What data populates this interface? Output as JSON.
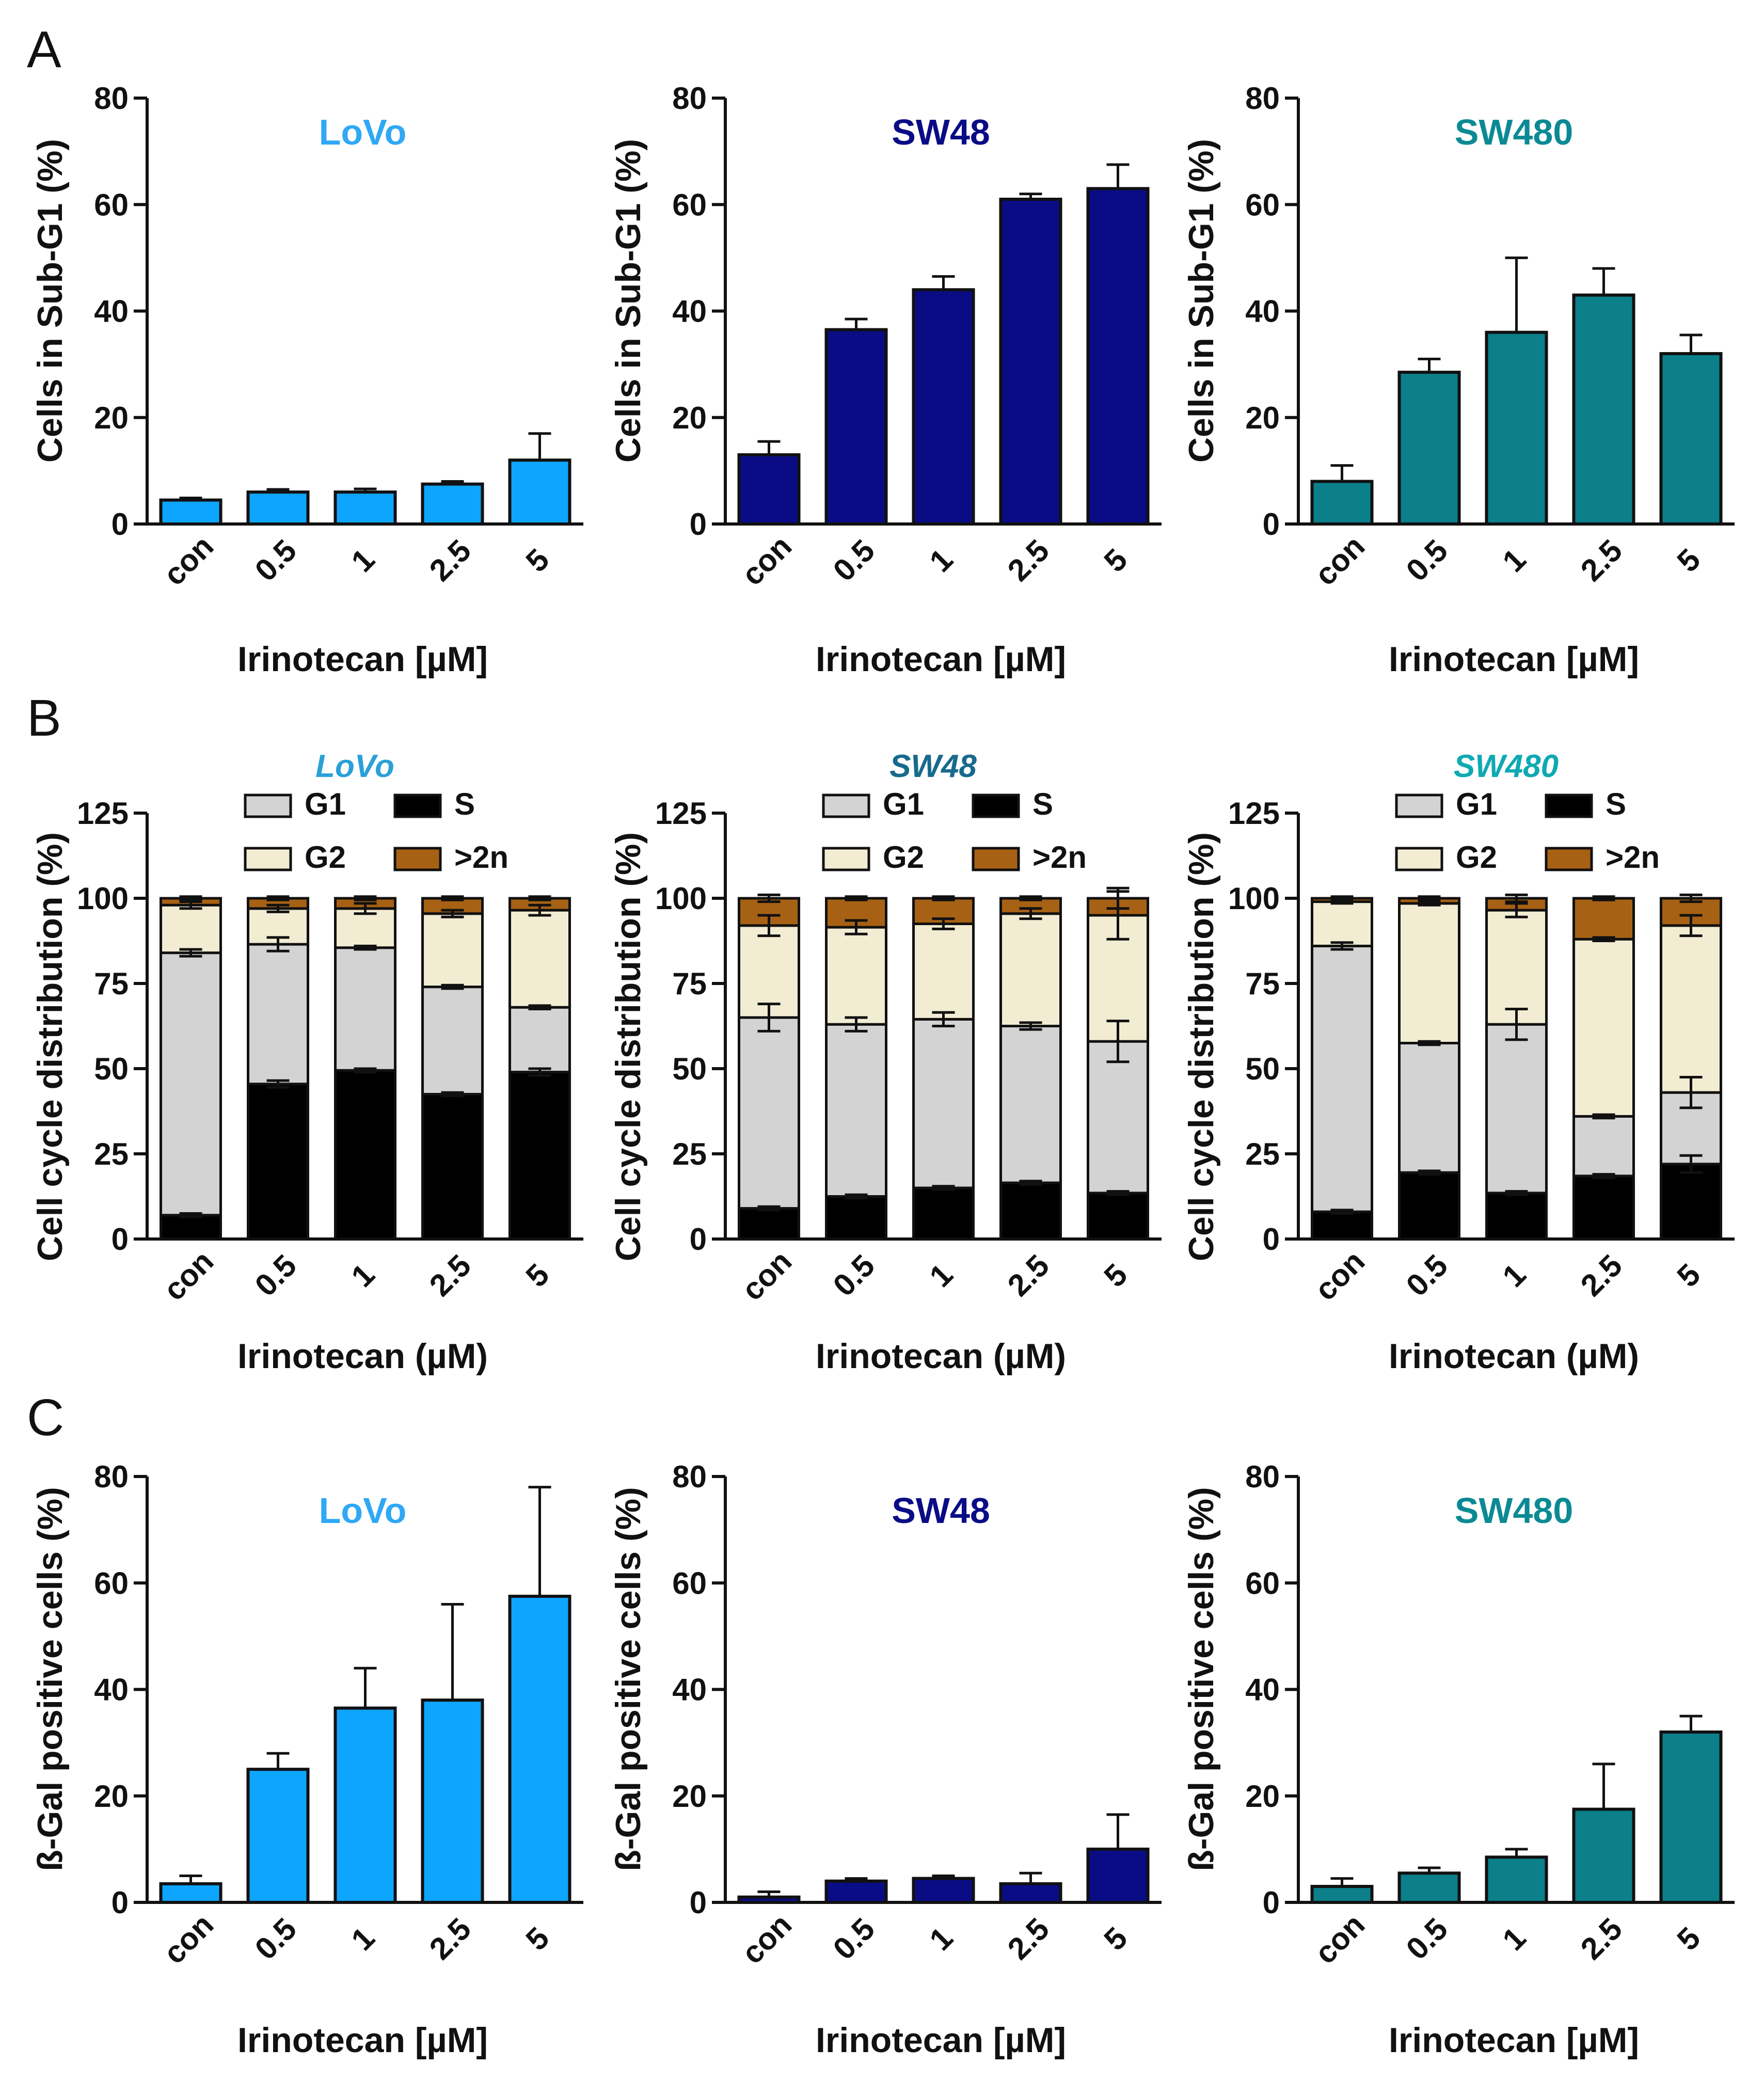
{
  "panel_letters": [
    "A",
    "B",
    "C"
  ],
  "colors": {
    "LoVo": "#0ea5ff",
    "SW48": "#0a0c86",
    "SW480": "#0b7f8a",
    "G1": "#d3d3d3",
    "S": "#000000",
    "G2": "#f2ecd3",
    "gt2n": "#a76114",
    "axis": "#111111"
  },
  "chart_data": [
    {
      "id": "A-LoVo",
      "panel": "A",
      "type": "bar",
      "title": "LoVo",
      "title_color": "#2fa8f5",
      "categories": [
        "con",
        "0.5",
        "1",
        "2.5",
        "5"
      ],
      "values": [
        4.5,
        6.0,
        6.0,
        7.5,
        12.0
      ],
      "errors": [
        0.4,
        0.5,
        0.6,
        0.5,
        5.0
      ],
      "xlabel": "Irinotecan [µM]",
      "ylabel": "Cells in Sub-G1 (%)",
      "ylim": [
        0,
        80
      ],
      "yticks": [
        0,
        20,
        40,
        60,
        80
      ]
    },
    {
      "id": "A-SW48",
      "panel": "A",
      "type": "bar",
      "title": "SW48",
      "title_color": "#0a0c86",
      "categories": [
        "con",
        "0.5",
        "1",
        "2.5",
        "5"
      ],
      "values": [
        13.0,
        36.5,
        44.0,
        61.0,
        63.0
      ],
      "errors": [
        2.5,
        2.0,
        2.5,
        1.0,
        4.5
      ],
      "xlabel": "Irinotecan [µM]",
      "ylabel": "Cells in Sub-G1 (%)",
      "ylim": [
        0,
        80
      ],
      "yticks": [
        0,
        20,
        40,
        60,
        80
      ]
    },
    {
      "id": "A-SW480",
      "panel": "A",
      "type": "bar",
      "title": "SW480",
      "title_color": "#0b8a94",
      "categories": [
        "con",
        "0.5",
        "1",
        "2.5",
        "5"
      ],
      "values": [
        8.0,
        28.5,
        36.0,
        43.0,
        32.0
      ],
      "errors": [
        3.0,
        2.5,
        14.0,
        5.0,
        3.5
      ],
      "xlabel": "Irinotecan [µM]",
      "ylabel": "Cells in Sub-G1 (%)",
      "ylim": [
        0,
        80
      ],
      "yticks": [
        0,
        20,
        40,
        60,
        80
      ]
    },
    {
      "id": "B-LoVo",
      "panel": "B",
      "type": "stacked_bar",
      "title": "LoVo",
      "title_color": "#2aa0d8",
      "categories": [
        "con",
        "0.5",
        "1",
        "2.5",
        "5"
      ],
      "series": [
        {
          "name": "S",
          "color_key": "S",
          "values": [
            7,
            45.5,
            49.5,
            42.5,
            49
          ],
          "errors": [
            0.5,
            1.0,
            0.5,
            0.5,
            1.0
          ]
        },
        {
          "name": "G1",
          "color_key": "G1",
          "values": [
            77,
            41,
            36,
            31.5,
            19
          ],
          "errors": [
            1.0,
            2.0,
            0.5,
            0.5,
            0.5
          ]
        },
        {
          "name": "G2",
          "color_key": "G2",
          "values": [
            14,
            10.5,
            11.5,
            21.5,
            28.5
          ],
          "errors": [
            1.0,
            1.0,
            1.5,
            1.0,
            1.5
          ]
        },
        {
          "name": ">2n",
          "color_key": "gt2n",
          "values": [
            2,
            3,
            3,
            4.5,
            3.5
          ],
          "errors": [
            0.5,
            0.5,
            0.5,
            0.5,
            0.5
          ]
        }
      ],
      "legend": [
        "G1",
        "S",
        "G2",
        ">2n"
      ],
      "xlabel": "Irinotecan (µM)",
      "ylabel": "Cell cycle distribution (%)",
      "ylim": [
        0,
        125
      ],
      "yticks": [
        0,
        25,
        50,
        75,
        100,
        125
      ]
    },
    {
      "id": "B-SW48",
      "panel": "B",
      "type": "stacked_bar",
      "title": "SW48",
      "title_color": "#176a8c",
      "categories": [
        "con",
        "0.5",
        "1",
        "2.5",
        "5"
      ],
      "series": [
        {
          "name": "S",
          "color_key": "S",
          "values": [
            9,
            12.5,
            15,
            16.5,
            13.5
          ],
          "errors": [
            0.5,
            0.5,
            0.5,
            0.5,
            0.5
          ]
        },
        {
          "name": "G1",
          "color_key": "G1",
          "values": [
            56,
            50.5,
            49.5,
            46,
            44.5
          ],
          "errors": [
            4.0,
            2.0,
            2.0,
            1.0,
            6.0
          ]
        },
        {
          "name": "G2",
          "color_key": "G2",
          "values": [
            27,
            28.5,
            28,
            33,
            37
          ],
          "errors": [
            3.0,
            2.0,
            1.5,
            1.5,
            7.0
          ]
        },
        {
          "name": ">2n",
          "color_key": "gt2n",
          "values": [
            8,
            8.5,
            7.5,
            4.5,
            5
          ],
          "errors": [
            1.0,
            0.5,
            0.5,
            0.5,
            3.0
          ]
        }
      ],
      "legend": [
        "G1",
        "S",
        "G2",
        ">2n"
      ],
      "xlabel": "Irinotecan (µM)",
      "ylabel": "Cell cycle distribution (%)",
      "ylim": [
        0,
        125
      ],
      "yticks": [
        0,
        25,
        50,
        75,
        100,
        125
      ]
    },
    {
      "id": "B-SW480",
      "panel": "B",
      "type": "stacked_bar",
      "title": "SW480",
      "title_color": "#0fa9b3",
      "categories": [
        "con",
        "0.5",
        "1",
        "2.5",
        "5"
      ],
      "series": [
        {
          "name": "S",
          "color_key": "S",
          "values": [
            8,
            19.5,
            13.5,
            18.5,
            22
          ],
          "errors": [
            0.5,
            0.5,
            0.5,
            0.5,
            2.5
          ]
        },
        {
          "name": "G1",
          "color_key": "G1",
          "values": [
            78,
            38,
            49.5,
            17.5,
            21
          ],
          "errors": [
            1.0,
            0.5,
            4.5,
            0.5,
            4.5
          ]
        },
        {
          "name": "G2",
          "color_key": "G2",
          "values": [
            13,
            41,
            33.5,
            52,
            49
          ],
          "errors": [
            0.5,
            0.5,
            2.0,
            0.5,
            3.0
          ]
        },
        {
          "name": ">2n",
          "color_key": "gt2n",
          "values": [
            1,
            1.5,
            3.5,
            12,
            8
          ],
          "errors": [
            0.5,
            0.5,
            1.0,
            0.5,
            1.0
          ]
        }
      ],
      "legend": [
        "G1",
        "S",
        "G2",
        ">2n"
      ],
      "xlabel": "Irinotecan (µM)",
      "ylabel": "Cell cycle distribution (%)",
      "ylim": [
        0,
        125
      ],
      "yticks": [
        0,
        25,
        50,
        75,
        100,
        125
      ]
    },
    {
      "id": "C-LoVo",
      "panel": "C",
      "type": "bar",
      "title": "LoVo",
      "title_color": "#2fa8f5",
      "categories": [
        "con",
        "0.5",
        "1",
        "2.5",
        "5"
      ],
      "values": [
        3.5,
        25.0,
        36.5,
        38.0,
        57.5
      ],
      "errors": [
        1.5,
        3.0,
        7.5,
        18.0,
        20.5
      ],
      "xlabel": "Irinotecan [µM]",
      "ylabel": "ß-Gal positive cells (%)",
      "ylim": [
        0,
        80
      ],
      "yticks": [
        0,
        20,
        40,
        60,
        80
      ]
    },
    {
      "id": "C-SW48",
      "panel": "C",
      "type": "bar",
      "title": "SW48",
      "title_color": "#0a0c86",
      "categories": [
        "con",
        "0.5",
        "1",
        "2.5",
        "5"
      ],
      "values": [
        1.0,
        4.0,
        4.5,
        3.5,
        10.0
      ],
      "errors": [
        1.0,
        0.5,
        0.5,
        2.0,
        6.5
      ],
      "xlabel": "Irinotecan [µM]",
      "ylabel": "ß-Gal positive cells (%)",
      "ylim": [
        0,
        80
      ],
      "yticks": [
        0,
        20,
        40,
        60,
        80
      ]
    },
    {
      "id": "C-SW480",
      "panel": "C",
      "type": "bar",
      "title": "SW480",
      "title_color": "#0b8a94",
      "categories": [
        "con",
        "0.5",
        "1",
        "2.5",
        "5"
      ],
      "values": [
        3.0,
        5.5,
        8.5,
        17.5,
        32.0
      ],
      "errors": [
        1.5,
        1.0,
        1.5,
        8.5,
        3.0
      ],
      "xlabel": "Irinotecan [µM]",
      "ylabel": "ß-Gal positive cells (%)",
      "ylim": [
        0,
        80
      ],
      "yticks": [
        0,
        20,
        40,
        60,
        80
      ]
    }
  ]
}
